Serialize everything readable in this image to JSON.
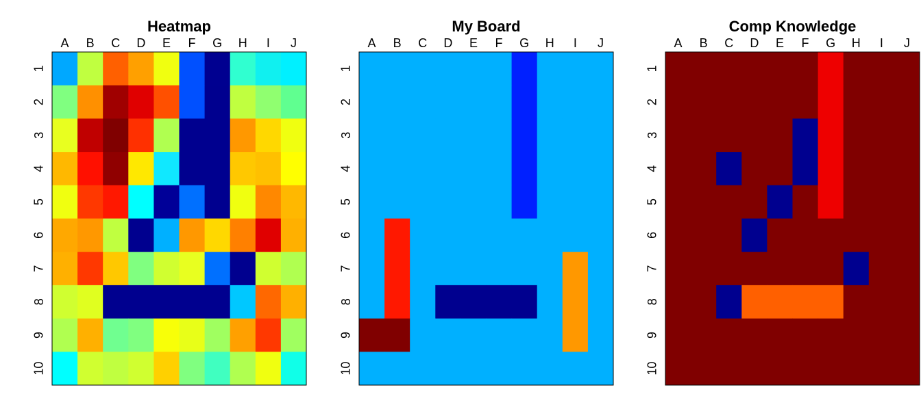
{
  "boards": [
    {
      "title": "Heatmap",
      "columns": [
        "A",
        "B",
        "C",
        "D",
        "E",
        "F",
        "G",
        "H",
        "I",
        "J"
      ],
      "rows": [
        "1",
        "2",
        "3",
        "4",
        "5",
        "6",
        "7",
        "8",
        "9",
        "10"
      ],
      "cells": [
        [
          "#00a8ff",
          "#c0ff40",
          "#ff6000",
          "#ffa000",
          "#f0ff10",
          "#0050ff",
          "#000090",
          "#30ffd0",
          "#10f0f0",
          "#00f0ff"
        ],
        [
          "#80ff80",
          "#ff9000",
          "#a00000",
          "#e00000",
          "#ff5000",
          "#0050ff",
          "#00008f",
          "#c0ff40",
          "#90ff70",
          "#60ff90"
        ],
        [
          "#e8ff20",
          "#c00000",
          "#800000",
          "#ff3000",
          "#b0ff50",
          "#00008f",
          "#00008f",
          "#ff9800",
          "#ffd800",
          "#f0ff10"
        ],
        [
          "#ffb800",
          "#ff1000",
          "#900000",
          "#ffe800",
          "#10e8ff",
          "#00008f",
          "#00008f",
          "#ffc800",
          "#ffc000",
          "#ffff00"
        ],
        [
          "#f0ff10",
          "#ff3800",
          "#ff1800",
          "#00ffff",
          "#000098",
          "#0070ff",
          "#00008f",
          "#f0ff10",
          "#ff8800",
          "#ffb800"
        ],
        [
          "#ffa800",
          "#ff9800",
          "#c0ff40",
          "#00008f",
          "#00b0ff",
          "#ff9800",
          "#ffd800",
          "#ff8000",
          "#e00000",
          "#ffb000"
        ],
        [
          "#ffb000",
          "#ff3800",
          "#ffc800",
          "#80ff80",
          "#d0ff30",
          "#e8ff20",
          "#0070ff",
          "#00008f",
          "#d0ff30",
          "#b0ff50"
        ],
        [
          "#d0ff30",
          "#e0ff20",
          "#00008f",
          "#00008f",
          "#00008f",
          "#00008f",
          "#00008f",
          "#00c8ff",
          "#ff6800",
          "#ffb000"
        ],
        [
          "#b0ff50",
          "#ffb000",
          "#70ff90",
          "#80ff80",
          "#f8ff08",
          "#e8ff18",
          "#a0ff60",
          "#ffa000",
          "#ff3800",
          "#a0ff60"
        ],
        [
          "#00ffff",
          "#d0ff30",
          "#c0ff40",
          "#d0ff30",
          "#ffd000",
          "#80ff80",
          "#40ffc0",
          "#b0ff50",
          "#f0ff10",
          "#10ffe8"
        ]
      ]
    },
    {
      "title": "My Board",
      "columns": [
        "A",
        "B",
        "C",
        "D",
        "E",
        "F",
        "G",
        "H",
        "I",
        "J"
      ],
      "rows": [
        "1",
        "2",
        "3",
        "4",
        "5",
        "6",
        "7",
        "8",
        "9",
        "10"
      ],
      "cells": [
        [
          "#00b0ff",
          "#00b0ff",
          "#00b0ff",
          "#00b0ff",
          "#00b0ff",
          "#00b0ff",
          "#0020ff",
          "#00b0ff",
          "#00b0ff",
          "#00b0ff"
        ],
        [
          "#00b0ff",
          "#00b0ff",
          "#00b0ff",
          "#00b0ff",
          "#00b0ff",
          "#00b0ff",
          "#0020ff",
          "#00b0ff",
          "#00b0ff",
          "#00b0ff"
        ],
        [
          "#00b0ff",
          "#00b0ff",
          "#00b0ff",
          "#00b0ff",
          "#00b0ff",
          "#00b0ff",
          "#0020ff",
          "#00b0ff",
          "#00b0ff",
          "#00b0ff"
        ],
        [
          "#00b0ff",
          "#00b0ff",
          "#00b0ff",
          "#00b0ff",
          "#00b0ff",
          "#00b0ff",
          "#0020ff",
          "#00b0ff",
          "#00b0ff",
          "#00b0ff"
        ],
        [
          "#00b0ff",
          "#00b0ff",
          "#00b0ff",
          "#00b0ff",
          "#00b0ff",
          "#00b0ff",
          "#0020ff",
          "#00b0ff",
          "#00b0ff",
          "#00b0ff"
        ],
        [
          "#00b0ff",
          "#ff1800",
          "#00b0ff",
          "#00b0ff",
          "#00b0ff",
          "#00b0ff",
          "#00b0ff",
          "#00b0ff",
          "#00b0ff",
          "#00b0ff"
        ],
        [
          "#00b0ff",
          "#ff1800",
          "#00b0ff",
          "#00b0ff",
          "#00b0ff",
          "#00b0ff",
          "#00b0ff",
          "#00b0ff",
          "#ff9800",
          "#00b0ff"
        ],
        [
          "#00b0ff",
          "#ff1800",
          "#00b0ff",
          "#00008f",
          "#00008f",
          "#00008f",
          "#00008f",
          "#00b0ff",
          "#ff9800",
          "#00b0ff"
        ],
        [
          "#800000",
          "#800000",
          "#00b0ff",
          "#00b0ff",
          "#00b0ff",
          "#00b0ff",
          "#00b0ff",
          "#00b0ff",
          "#ff9800",
          "#00b0ff"
        ],
        [
          "#00b0ff",
          "#00b0ff",
          "#00b0ff",
          "#00b0ff",
          "#00b0ff",
          "#00b0ff",
          "#00b0ff",
          "#00b0ff",
          "#00b0ff",
          "#00b0ff"
        ]
      ]
    },
    {
      "title": "Comp Knowledge",
      "columns": [
        "A",
        "B",
        "C",
        "D",
        "E",
        "F",
        "G",
        "H",
        "I",
        "J"
      ],
      "rows": [
        "1",
        "2",
        "3",
        "4",
        "5",
        "6",
        "7",
        "8",
        "9",
        "10"
      ],
      "cells": [
        [
          "#800000",
          "#800000",
          "#800000",
          "#800000",
          "#800000",
          "#800000",
          "#ee0000",
          "#800000",
          "#800000",
          "#800000"
        ],
        [
          "#800000",
          "#800000",
          "#800000",
          "#800000",
          "#800000",
          "#800000",
          "#ee0000",
          "#800000",
          "#800000",
          "#800000"
        ],
        [
          "#800000",
          "#800000",
          "#800000",
          "#800000",
          "#800000",
          "#00008f",
          "#ee0000",
          "#800000",
          "#800000",
          "#800000"
        ],
        [
          "#800000",
          "#800000",
          "#00008f",
          "#800000",
          "#800000",
          "#00008f",
          "#ee0000",
          "#800000",
          "#800000",
          "#800000"
        ],
        [
          "#800000",
          "#800000",
          "#800000",
          "#800000",
          "#00008f",
          "#800000",
          "#ee0000",
          "#800000",
          "#800000",
          "#800000"
        ],
        [
          "#800000",
          "#800000",
          "#800000",
          "#00008f",
          "#800000",
          "#800000",
          "#800000",
          "#800000",
          "#800000",
          "#800000"
        ],
        [
          "#800000",
          "#800000",
          "#800000",
          "#800000",
          "#800000",
          "#800000",
          "#800000",
          "#00008f",
          "#800000",
          "#800000"
        ],
        [
          "#800000",
          "#800000",
          "#00008f",
          "#ff6000",
          "#ff6000",
          "#ff6000",
          "#ff6000",
          "#800000",
          "#800000",
          "#800000"
        ],
        [
          "#800000",
          "#800000",
          "#800000",
          "#800000",
          "#800000",
          "#800000",
          "#800000",
          "#800000",
          "#800000",
          "#800000"
        ],
        [
          "#800000",
          "#800000",
          "#800000",
          "#800000",
          "#800000",
          "#800000",
          "#800000",
          "#800000",
          "#800000",
          "#800000"
        ]
      ]
    }
  ]
}
